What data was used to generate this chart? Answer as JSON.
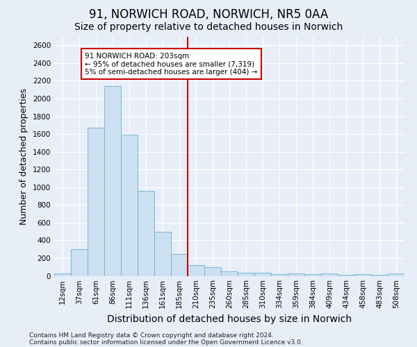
{
  "title1": "91, NORWICH ROAD, NORWICH, NR5 0AA",
  "title2": "Size of property relative to detached houses in Norwich",
  "xlabel": "Distribution of detached houses by size in Norwich",
  "ylabel": "Number of detached properties",
  "footnote1": "Contains HM Land Registry data © Crown copyright and database right 2024.",
  "footnote2": "Contains public sector information licensed under the Open Government Licence v3.0.",
  "bar_labels": [
    "12sqm",
    "37sqm",
    "61sqm",
    "86sqm",
    "111sqm",
    "136sqm",
    "161sqm",
    "185sqm",
    "210sqm",
    "235sqm",
    "260sqm",
    "285sqm",
    "310sqm",
    "334sqm",
    "359sqm",
    "384sqm",
    "409sqm",
    "434sqm",
    "458sqm",
    "483sqm",
    "508sqm"
  ],
  "bar_values": [
    25,
    300,
    1670,
    2140,
    1590,
    960,
    500,
    250,
    125,
    100,
    50,
    35,
    35,
    20,
    30,
    20,
    30,
    10,
    20,
    10,
    25
  ],
  "bar_color": "#cce0f0",
  "bar_edge_color": "#6aafd6",
  "bar_width": 1.0,
  "vline_x": 7.5,
  "vline_color": "#cc0000",
  "annotation_text": "91 NORWICH ROAD: 203sqm\n← 95% of detached houses are smaller (7,319)\n5% of semi-detached houses are larger (404) →",
  "annotation_box_color": "#ffffff",
  "annotation_box_edge": "#cc0000",
  "ylim": [
    0,
    2700
  ],
  "yticks": [
    0,
    200,
    400,
    600,
    800,
    1000,
    1200,
    1400,
    1600,
    1800,
    2000,
    2200,
    2400,
    2600
  ],
  "bg_color": "#e8eef8",
  "plot_bg_color": "#e8eef8",
  "grid_color": "#ffffff",
  "title_fontsize": 12,
  "subtitle_fontsize": 10,
  "axis_label_fontsize": 9,
  "tick_fontsize": 7.5,
  "footnote_fontsize": 6.5
}
